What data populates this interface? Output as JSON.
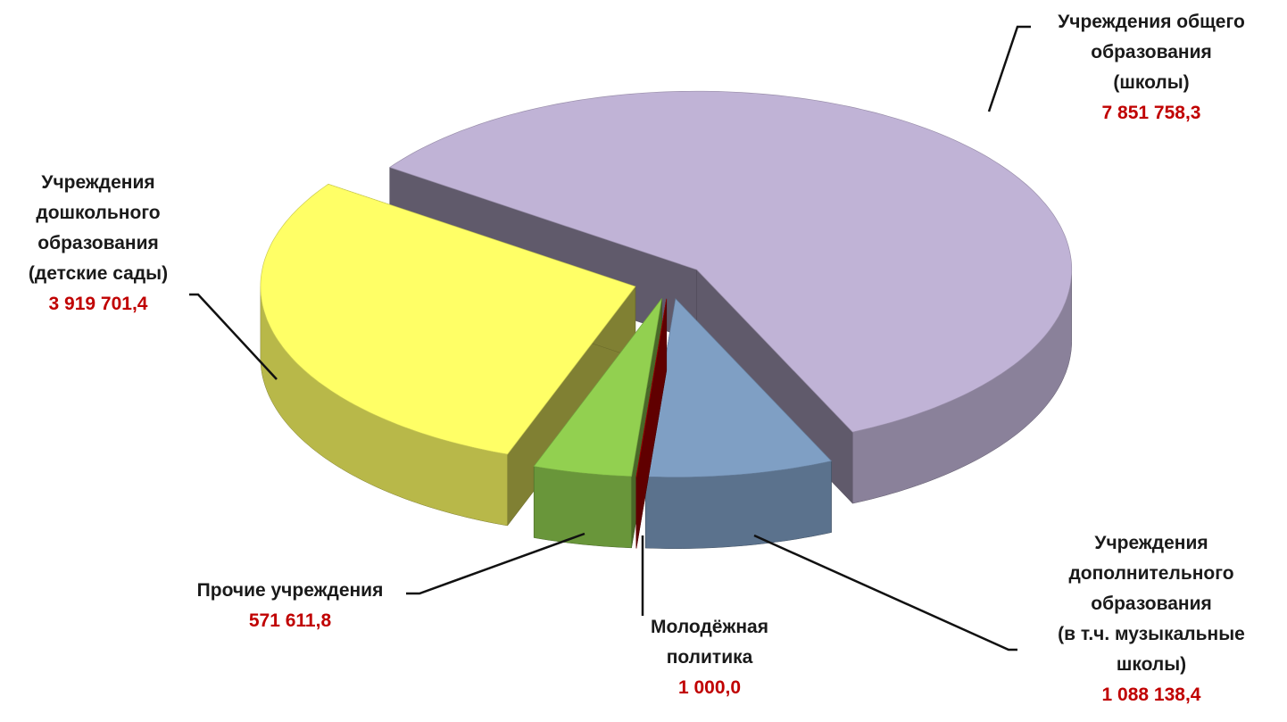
{
  "chart_data": {
    "type": "pie3d",
    "categories": [
      "Учреждения общего\nобразования\n(школы)",
      "Учреждения\nдополнительного\nобразования\n(в т.ч. музыкальные\nшколы)",
      "Молодёжная\nполитика",
      "Прочие учреждения",
      "Учреждения\nдошкольного\nобразования\n(детские сады)"
    ],
    "values": [
      7851758.3,
      1088138.4,
      1000.0,
      571611.8,
      3919701.4
    ],
    "value_labels": [
      "7 851 758,3",
      "1 088 138,4",
      "1 000,0",
      "571 611,8",
      "3 919 701,4"
    ],
    "colors": [
      "#c0b3d6",
      "#7f9fc4",
      "#c00000",
      "#92d050",
      "#ffff66"
    ]
  }
}
